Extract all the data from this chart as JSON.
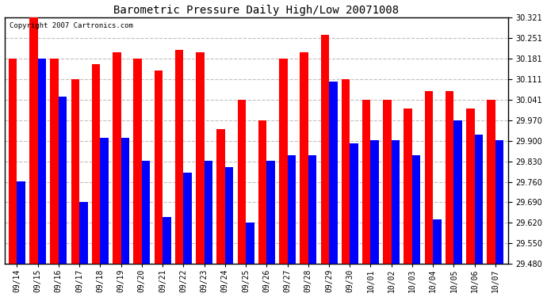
{
  "title": "Barometric Pressure Daily High/Low 20071008",
  "copyright": "Copyright 2007 Cartronics.com",
  "labels": [
    "09/14",
    "09/15",
    "09/16",
    "09/17",
    "09/18",
    "09/19",
    "09/20",
    "09/21",
    "09/22",
    "09/23",
    "09/24",
    "09/25",
    "09/26",
    "09/27",
    "09/28",
    "09/29",
    "09/30",
    "10/01",
    "10/02",
    "10/03",
    "10/04",
    "10/05",
    "10/06",
    "10/07"
  ],
  "highs": [
    30.181,
    30.321,
    30.181,
    30.111,
    30.161,
    30.201,
    30.181,
    30.141,
    30.211,
    30.201,
    29.941,
    30.041,
    29.971,
    30.181,
    30.201,
    30.261,
    30.111,
    30.041,
    30.041,
    30.011,
    30.071,
    30.071,
    30.011,
    30.041
  ],
  "lows": [
    29.761,
    30.181,
    30.051,
    29.691,
    29.911,
    29.911,
    29.831,
    29.641,
    29.791,
    29.831,
    29.811,
    29.621,
    29.831,
    29.851,
    29.851,
    30.101,
    29.891,
    29.901,
    29.901,
    29.851,
    29.631,
    29.971,
    29.921,
    29.901
  ],
  "high_color": "#ff0000",
  "low_color": "#0000ff",
  "bg_color": "#ffffff",
  "plot_bg_color": "#ffffff",
  "grid_color": "#c0c0c0",
  "ymin": 29.48,
  "ymax": 30.321,
  "yticks": [
    29.48,
    29.55,
    29.62,
    29.69,
    29.76,
    29.83,
    29.9,
    29.97,
    30.041,
    30.111,
    30.181,
    30.251,
    30.321
  ]
}
